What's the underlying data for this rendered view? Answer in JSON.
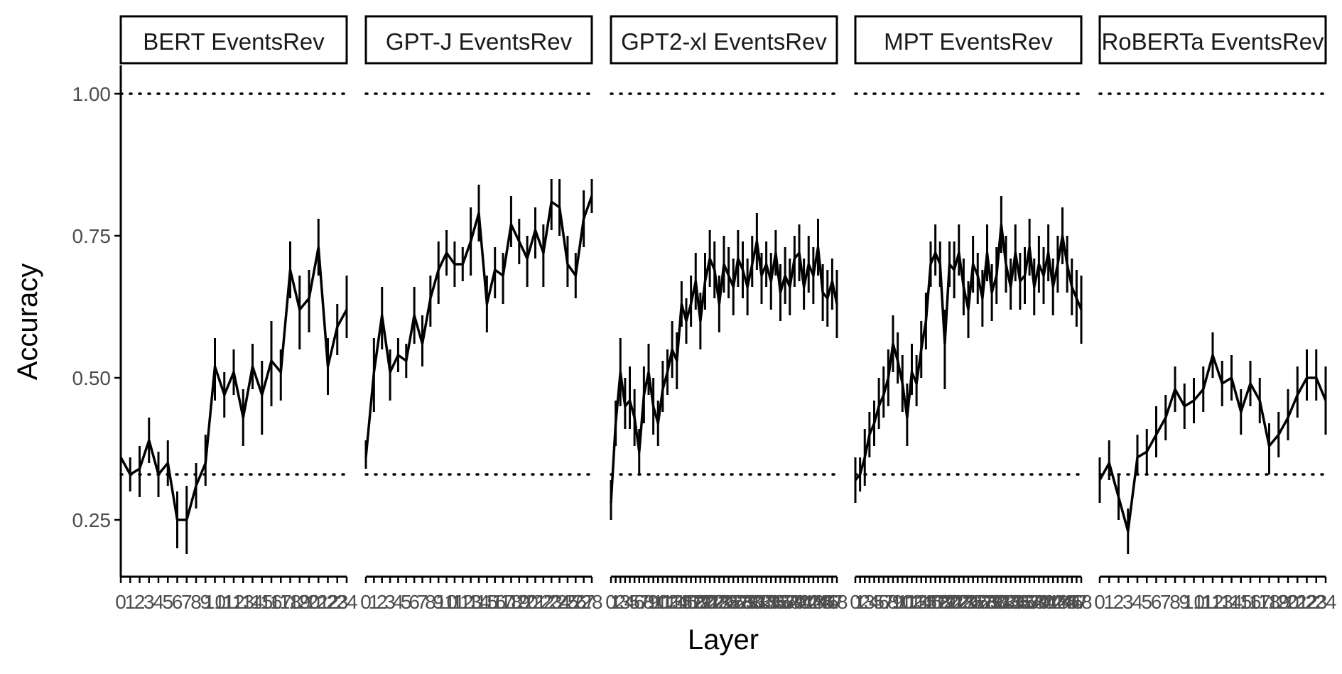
{
  "chart_data": {
    "type": "line",
    "xlabel": "Layer",
    "ylabel": "Accuracy",
    "ylim": [
      0.15,
      1.05
    ],
    "yticks": [
      0.25,
      0.5,
      0.75,
      1.0
    ],
    "ytick_labels": [
      "0.25",
      "0.50",
      "0.75",
      "1.00"
    ],
    "reference_lines": [
      1.0,
      0.33
    ],
    "line_color": "#000000",
    "reference_line_color": "#000000",
    "grid": false,
    "legend": "none",
    "panels": [
      {
        "title": "BERT EventsRev",
        "x": [
          0,
          1,
          2,
          3,
          4,
          5,
          6,
          7,
          8,
          9,
          10,
          11,
          12,
          13,
          14,
          15,
          16,
          17,
          18,
          19,
          20,
          21,
          22,
          23,
          24
        ],
        "x_labels": [
          "0",
          "1",
          "2",
          "3",
          "4",
          "5",
          "6",
          "7",
          "8",
          "9",
          "10",
          "11",
          "12",
          "13",
          "14",
          "15",
          "16",
          "17",
          "18",
          "19",
          "20",
          "21",
          "22",
          "23",
          "24"
        ],
        "y": [
          0.36,
          0.33,
          0.34,
          0.39,
          0.33,
          0.35,
          0.25,
          0.25,
          0.31,
          0.35,
          0.52,
          0.47,
          0.51,
          0.43,
          0.52,
          0.47,
          0.53,
          0.51,
          0.69,
          0.62,
          0.64,
          0.73,
          0.52,
          0.59,
          0.62
        ],
        "y_low": [
          0.34,
          0.3,
          0.29,
          0.35,
          0.29,
          0.31,
          0.2,
          0.19,
          0.27,
          0.31,
          0.46,
          0.43,
          0.47,
          0.38,
          0.48,
          0.4,
          0.45,
          0.46,
          0.64,
          0.55,
          0.58,
          0.68,
          0.47,
          0.54,
          0.57
        ],
        "y_high": [
          0.39,
          0.36,
          0.38,
          0.43,
          0.37,
          0.39,
          0.3,
          0.31,
          0.35,
          0.4,
          0.57,
          0.51,
          0.55,
          0.48,
          0.56,
          0.53,
          0.6,
          0.55,
          0.74,
          0.68,
          0.69,
          0.78,
          0.57,
          0.63,
          0.68
        ]
      },
      {
        "title": "GPT-J EventsRev",
        "x": [
          0,
          1,
          2,
          3,
          4,
          5,
          6,
          7,
          8,
          9,
          10,
          11,
          12,
          13,
          14,
          15,
          16,
          17,
          18,
          19,
          20,
          21,
          22,
          23,
          24,
          25,
          26,
          27,
          28
        ],
        "x_labels": [
          "0",
          "1",
          "2",
          "3",
          "4",
          "5",
          "6",
          "7",
          "8",
          "9",
          "10",
          "11",
          "12",
          "13",
          "14",
          "15",
          "16",
          "17",
          "18",
          "19",
          "20",
          "21",
          "22",
          "23",
          "24",
          "25",
          "26",
          "27",
          "28"
        ],
        "y": [
          0.36,
          0.51,
          0.61,
          0.51,
          0.54,
          0.53,
          0.61,
          0.56,
          0.64,
          0.69,
          0.72,
          0.7,
          0.7,
          0.74,
          0.79,
          0.63,
          0.69,
          0.68,
          0.77,
          0.74,
          0.71,
          0.76,
          0.72,
          0.81,
          0.8,
          0.7,
          0.68,
          0.78,
          0.82
        ],
        "y_low": [
          0.34,
          0.44,
          0.55,
          0.46,
          0.51,
          0.5,
          0.56,
          0.52,
          0.59,
          0.63,
          0.68,
          0.66,
          0.67,
          0.68,
          0.74,
          0.58,
          0.64,
          0.63,
          0.73,
          0.7,
          0.66,
          0.71,
          0.66,
          0.76,
          0.75,
          0.66,
          0.64,
          0.73,
          0.79
        ],
        "y_high": [
          0.39,
          0.57,
          0.66,
          0.55,
          0.57,
          0.56,
          0.66,
          0.61,
          0.68,
          0.74,
          0.76,
          0.74,
          0.73,
          0.8,
          0.84,
          0.68,
          0.73,
          0.72,
          0.82,
          0.78,
          0.75,
          0.8,
          0.77,
          0.85,
          0.85,
          0.75,
          0.72,
          0.83,
          0.85
        ]
      },
      {
        "title": "GPT2-xl EventsRev",
        "x": [
          0,
          1,
          2,
          3,
          4,
          5,
          6,
          7,
          8,
          9,
          10,
          11,
          12,
          13,
          14,
          15,
          16,
          17,
          18,
          19,
          20,
          21,
          22,
          23,
          24,
          25,
          26,
          27,
          28,
          29,
          30,
          31,
          32,
          33,
          34,
          35,
          36,
          37,
          38,
          39,
          40,
          41,
          42,
          43,
          44,
          45,
          46,
          47,
          48
        ],
        "x_labels": [
          "0",
          "1",
          "2",
          "3",
          "4",
          "5",
          "6",
          "7",
          "8",
          "9",
          "10",
          "11",
          "12",
          "13",
          "14",
          "15",
          "16",
          "17",
          "18",
          "19",
          "20",
          "21",
          "22",
          "23",
          "24",
          "25",
          "26",
          "27",
          "28",
          "29",
          "30",
          "31",
          "32",
          "33",
          "34",
          "35",
          "36",
          "37",
          "38",
          "39",
          "40",
          "41",
          "42",
          "43",
          "44",
          "45",
          "46",
          "47",
          "48"
        ],
        "y": [
          0.28,
          0.42,
          0.51,
          0.45,
          0.46,
          0.43,
          0.37,
          0.47,
          0.51,
          0.45,
          0.42,
          0.48,
          0.51,
          0.55,
          0.53,
          0.63,
          0.6,
          0.63,
          0.67,
          0.6,
          0.67,
          0.71,
          0.69,
          0.63,
          0.7,
          0.68,
          0.66,
          0.71,
          0.69,
          0.66,
          0.7,
          0.74,
          0.68,
          0.7,
          0.67,
          0.72,
          0.65,
          0.68,
          0.66,
          0.71,
          0.72,
          0.66,
          0.7,
          0.68,
          0.73,
          0.65,
          0.64,
          0.67,
          0.63
        ],
        "y_low": [
          0.25,
          0.38,
          0.45,
          0.41,
          0.41,
          0.38,
          0.33,
          0.42,
          0.47,
          0.4,
          0.38,
          0.44,
          0.47,
          0.5,
          0.48,
          0.59,
          0.56,
          0.59,
          0.62,
          0.55,
          0.62,
          0.66,
          0.64,
          0.58,
          0.65,
          0.64,
          0.61,
          0.66,
          0.64,
          0.61,
          0.66,
          0.69,
          0.63,
          0.66,
          0.62,
          0.68,
          0.6,
          0.63,
          0.61,
          0.66,
          0.67,
          0.62,
          0.65,
          0.63,
          0.68,
          0.6,
          0.59,
          0.62,
          0.57
        ],
        "y_high": [
          0.32,
          0.46,
          0.57,
          0.5,
          0.52,
          0.48,
          0.41,
          0.52,
          0.56,
          0.5,
          0.46,
          0.53,
          0.55,
          0.6,
          0.58,
          0.67,
          0.64,
          0.68,
          0.72,
          0.65,
          0.72,
          0.76,
          0.74,
          0.68,
          0.75,
          0.73,
          0.71,
          0.76,
          0.74,
          0.71,
          0.75,
          0.79,
          0.72,
          0.74,
          0.72,
          0.76,
          0.7,
          0.73,
          0.71,
          0.75,
          0.77,
          0.71,
          0.75,
          0.73,
          0.78,
          0.7,
          0.69,
          0.71,
          0.69
        ]
      },
      {
        "title": "MPT EventsRev",
        "x": [
          0,
          1,
          2,
          3,
          4,
          5,
          6,
          7,
          8,
          9,
          10,
          11,
          12,
          13,
          14,
          15,
          16,
          17,
          18,
          19,
          20,
          21,
          22,
          23,
          24,
          25,
          26,
          27,
          28,
          29,
          30,
          31,
          32,
          33,
          34,
          35,
          36,
          37,
          38,
          39,
          40,
          41,
          42,
          43,
          44,
          45,
          46,
          47,
          48
        ],
        "x_labels": [
          "0",
          "1",
          "2",
          "3",
          "4",
          "5",
          "6",
          "7",
          "8",
          "9",
          "10",
          "11",
          "12",
          "13",
          "14",
          "15",
          "16",
          "17",
          "18",
          "19",
          "20",
          "21",
          "22",
          "23",
          "24",
          "25",
          "26",
          "27",
          "28",
          "29",
          "30",
          "31",
          "32",
          "33",
          "34",
          "35",
          "36",
          "37",
          "38",
          "39",
          "40",
          "41",
          "42",
          "43",
          "44",
          "45",
          "46",
          "47",
          "48"
        ],
        "y": [
          0.32,
          0.33,
          0.36,
          0.4,
          0.42,
          0.45,
          0.47,
          0.5,
          0.56,
          0.53,
          0.49,
          0.43,
          0.51,
          0.49,
          0.55,
          0.6,
          0.7,
          0.72,
          0.7,
          0.56,
          0.7,
          0.69,
          0.72,
          0.66,
          0.62,
          0.7,
          0.68,
          0.64,
          0.72,
          0.65,
          0.68,
          0.77,
          0.7,
          0.66,
          0.72,
          0.67,
          0.68,
          0.73,
          0.66,
          0.7,
          0.68,
          0.72,
          0.66,
          0.7,
          0.75,
          0.7,
          0.66,
          0.64,
          0.62
        ],
        "y_low": [
          0.28,
          0.3,
          0.31,
          0.36,
          0.38,
          0.41,
          0.43,
          0.45,
          0.51,
          0.49,
          0.44,
          0.38,
          0.47,
          0.45,
          0.5,
          0.55,
          0.66,
          0.68,
          0.66,
          0.48,
          0.66,
          0.64,
          0.68,
          0.61,
          0.57,
          0.65,
          0.63,
          0.59,
          0.67,
          0.6,
          0.63,
          0.72,
          0.65,
          0.62,
          0.67,
          0.62,
          0.63,
          0.68,
          0.61,
          0.65,
          0.63,
          0.67,
          0.61,
          0.65,
          0.7,
          0.65,
          0.61,
          0.59,
          0.56
        ],
        "y_high": [
          0.36,
          0.36,
          0.41,
          0.44,
          0.46,
          0.5,
          0.52,
          0.55,
          0.61,
          0.58,
          0.54,
          0.49,
          0.56,
          0.54,
          0.6,
          0.65,
          0.74,
          0.77,
          0.74,
          0.62,
          0.74,
          0.74,
          0.77,
          0.71,
          0.67,
          0.75,
          0.72,
          0.69,
          0.77,
          0.7,
          0.73,
          0.82,
          0.75,
          0.71,
          0.77,
          0.72,
          0.73,
          0.78,
          0.71,
          0.75,
          0.73,
          0.77,
          0.71,
          0.75,
          0.8,
          0.75,
          0.71,
          0.69,
          0.68
        ]
      },
      {
        "title": "RoBERTa EventsRev",
        "x": [
          0,
          1,
          2,
          3,
          4,
          5,
          6,
          7,
          8,
          9,
          10,
          11,
          12,
          13,
          14,
          15,
          16,
          17,
          18,
          19,
          20,
          21,
          22,
          23,
          24
        ],
        "x_labels": [
          "0",
          "1",
          "2",
          "3",
          "4",
          "5",
          "6",
          "7",
          "8",
          "9",
          "10",
          "11",
          "12",
          "13",
          "14",
          "15",
          "16",
          "17",
          "18",
          "19",
          "20",
          "21",
          "22",
          "23",
          "24"
        ],
        "y": [
          0.32,
          0.35,
          0.29,
          0.23,
          0.36,
          0.37,
          0.4,
          0.43,
          0.48,
          0.45,
          0.46,
          0.48,
          0.54,
          0.49,
          0.5,
          0.44,
          0.49,
          0.46,
          0.38,
          0.4,
          0.43,
          0.47,
          0.5,
          0.5,
          0.46
        ],
        "y_low": [
          0.28,
          0.32,
          0.25,
          0.19,
          0.33,
          0.33,
          0.36,
          0.39,
          0.44,
          0.41,
          0.42,
          0.44,
          0.5,
          0.45,
          0.46,
          0.4,
          0.45,
          0.42,
          0.33,
          0.36,
          0.39,
          0.43,
          0.46,
          0.46,
          0.4
        ],
        "y_high": [
          0.36,
          0.39,
          0.33,
          0.27,
          0.4,
          0.41,
          0.45,
          0.47,
          0.52,
          0.49,
          0.5,
          0.52,
          0.58,
          0.53,
          0.54,
          0.48,
          0.53,
          0.5,
          0.42,
          0.44,
          0.48,
          0.52,
          0.55,
          0.55,
          0.52
        ]
      }
    ]
  }
}
